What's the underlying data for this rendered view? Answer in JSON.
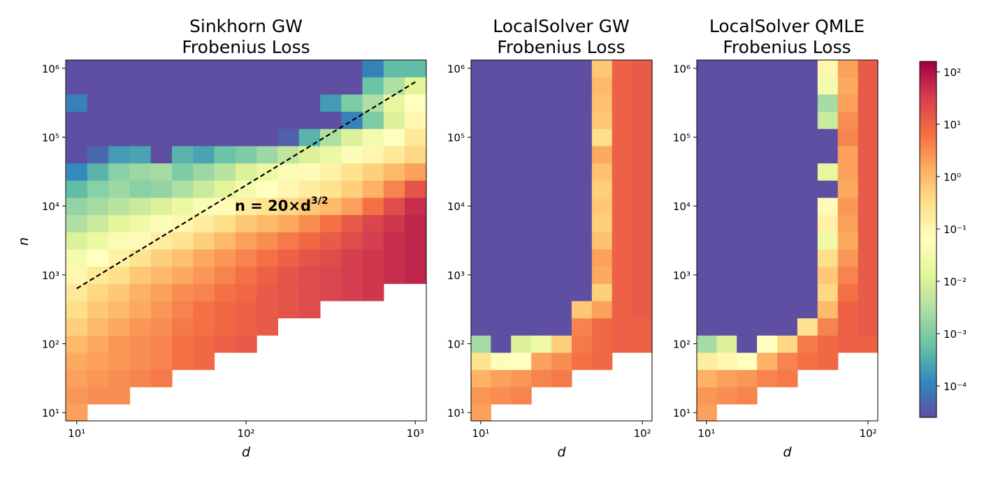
{
  "chart_data": [
    {
      "type": "heatmap",
      "title": [
        "Sinkhorn GW",
        "Frobenius Loss"
      ],
      "xlabel": "d",
      "ylabel": "n",
      "x_scale": "log",
      "y_scale": "log",
      "x_ticks": [
        {
          "value": 10,
          "label": "10¹"
        },
        {
          "value": 100,
          "label": "10²"
        },
        {
          "value": 1000,
          "label": "10³"
        }
      ],
      "y_ticks": [
        {
          "value": 10,
          "label": "10¹"
        },
        {
          "value": 100,
          "label": "10²"
        },
        {
          "value": 1000,
          "label": "10³"
        },
        {
          "value": 10000,
          "label": "10⁴"
        },
        {
          "value": 100000,
          "label": "10⁵"
        },
        {
          "value": 1000000,
          "label": "10⁶"
        }
      ],
      "x_log_range": [
        0.935,
        3.065
      ],
      "y_log_range": [
        0.88,
        6.12
      ],
      "x_log_start": 1.0,
      "x_log_step": 0.125,
      "x_count": 17,
      "y_log_start": 1.0,
      "y_log_step": 0.25,
      "y_count": 21,
      "cell_note": "log10 of loss, rows from n=10 upward, columns d from 10 upward; null = no data",
      "log10_values": [
        [
          0.3,
          null,
          null,
          null,
          null,
          null,
          null,
          null,
          null,
          null,
          null,
          null,
          null,
          null,
          null,
          null,
          null
        ],
        [
          0.4,
          0.5,
          0.5,
          null,
          null,
          null,
          null,
          null,
          null,
          null,
          null,
          null,
          null,
          null,
          null,
          null,
          null
        ],
        [
          0.3,
          0.4,
          0.5,
          0.6,
          0.7,
          null,
          null,
          null,
          null,
          null,
          null,
          null,
          null,
          null,
          null,
          null,
          null
        ],
        [
          0.2,
          0.3,
          0.4,
          0.5,
          0.6,
          0.8,
          0.9,
          null,
          null,
          null,
          null,
          null,
          null,
          null,
          null,
          null,
          null
        ],
        [
          0.0,
          0.2,
          0.4,
          0.5,
          0.6,
          0.8,
          0.9,
          1.0,
          1.1,
          null,
          null,
          null,
          null,
          null,
          null,
          null,
          null
        ],
        [
          -0.3,
          0.0,
          0.2,
          0.4,
          0.5,
          0.7,
          0.8,
          0.9,
          1.0,
          1.1,
          null,
          null,
          null,
          null,
          null,
          null,
          null
        ],
        [
          -0.5,
          -0.2,
          0.0,
          0.2,
          0.4,
          0.6,
          0.8,
          0.9,
          1.0,
          1.1,
          1.2,
          1.3,
          null,
          null,
          null,
          null,
          null
        ],
        [
          -0.7,
          -0.4,
          -0.2,
          0.1,
          0.3,
          0.5,
          0.6,
          0.8,
          0.9,
          1.1,
          1.2,
          1.3,
          1.4,
          1.5,
          1.6,
          null,
          null
        ],
        [
          -1.0,
          -0.7,
          -0.5,
          -0.2,
          0.0,
          0.2,
          0.4,
          0.6,
          0.8,
          1.0,
          1.2,
          1.3,
          1.4,
          1.5,
          1.6,
          1.7,
          1.8
        ],
        [
          -1.5,
          -1.2,
          -0.9,
          -0.6,
          -0.3,
          -0.1,
          0.2,
          0.4,
          0.6,
          0.8,
          1.0,
          1.2,
          1.3,
          1.5,
          1.6,
          1.7,
          1.8
        ],
        [
          -2.0,
          -1.7,
          -1.4,
          -1.1,
          -0.8,
          -0.6,
          -0.3,
          0.0,
          0.3,
          0.5,
          0.7,
          0.9,
          1.1,
          1.3,
          1.5,
          1.7,
          1.8
        ],
        [
          -2.5,
          -2.2,
          -1.9,
          -1.6,
          -1.3,
          -1.0,
          -0.8,
          -0.5,
          -0.2,
          0.0,
          0.2,
          0.5,
          0.8,
          1.1,
          1.4,
          1.6,
          1.8
        ],
        [
          -2.8,
          -2.6,
          -2.4,
          -2.2,
          -2.0,
          -1.7,
          -1.4,
          -1.1,
          -0.8,
          -0.6,
          -0.4,
          -0.2,
          0.0,
          0.3,
          0.8,
          1.3,
          1.7
        ],
        [
          -3.3,
          -2.9,
          -2.7,
          -2.9,
          -2.8,
          -2.5,
          -2.2,
          -1.9,
          -1.5,
          -1.2,
          -1.0,
          -0.8,
          -0.6,
          -0.3,
          0.1,
          0.6,
          1.2
        ],
        [
          -3.9,
          -3.4,
          -2.9,
          -2.7,
          -2.6,
          -3.0,
          -2.7,
          -2.4,
          -2.0,
          -1.7,
          -1.4,
          -1.1,
          -0.9,
          -0.6,
          -0.3,
          0.0,
          0.3
        ],
        [
          -5.0,
          -4.3,
          -3.7,
          -3.6,
          -5.0,
          -3.4,
          -3.6,
          -3.2,
          -3.0,
          -2.7,
          -2.3,
          -2.0,
          -1.7,
          -1.3,
          -1.0,
          -0.7,
          -0.4
        ],
        [
          -5.0,
          -5.0,
          -5.0,
          -5.0,
          -5.0,
          -5.0,
          -5.0,
          -5.0,
          -5.0,
          -5.0,
          -4.4,
          -3.4,
          -2.5,
          -2.0,
          -1.5,
          -1.2,
          -0.7
        ],
        [
          -5.0,
          -5.0,
          -5.0,
          -5.0,
          -5.0,
          -5.0,
          -5.0,
          -5.0,
          -5.0,
          -5.0,
          -5.0,
          -5.0,
          -5.0,
          -4.0,
          -3.0,
          -2.0,
          -1.0
        ],
        [
          -4.0,
          -5.0,
          -5.0,
          -5.0,
          -5.0,
          -5.0,
          -5.0,
          -5.0,
          -5.0,
          -5.0,
          -5.0,
          -5.0,
          -3.7,
          -3.0,
          -2.5,
          -1.8,
          -1.2
        ],
        [
          -5.0,
          -5.0,
          -5.0,
          -5.0,
          -5.0,
          -5.0,
          -5.0,
          -5.0,
          -5.0,
          -5.0,
          -5.0,
          -5.0,
          -5.0,
          -5.0,
          -3.2,
          -2.5,
          -1.9
        ],
        [
          -5.0,
          -5.0,
          -5.0,
          -5.0,
          -5.0,
          -5.0,
          -5.0,
          -5.0,
          -5.0,
          -5.0,
          -5.0,
          -5.0,
          -5.0,
          -5.0,
          -4.0,
          -3.3,
          -3.3
        ]
      ],
      "reference_line": {
        "label_prefix": "n = 20×d",
        "label_exponent": "3/2",
        "style": "dashed",
        "color": "#000000",
        "coefficient": 20,
        "exponent": 1.5,
        "d_from": 10,
        "d_to": 1000
      }
    },
    {
      "type": "heatmap",
      "title": [
        "LocalSolver GW",
        "Frobenius Loss"
      ],
      "xlabel": "d",
      "ylabel": "",
      "x_scale": "log",
      "y_scale": "log",
      "x_ticks": [
        {
          "value": 10,
          "label": "10¹"
        },
        {
          "value": 100,
          "label": "10²"
        }
      ],
      "y_ticks": [
        {
          "value": 10,
          "label": "10¹"
        },
        {
          "value": 100,
          "label": "10²"
        },
        {
          "value": 1000,
          "label": "10³"
        },
        {
          "value": 10000,
          "label": "10⁴"
        },
        {
          "value": 100000,
          "label": "10⁵"
        },
        {
          "value": 1000000,
          "label": "10⁶"
        }
      ],
      "x_log_range": [
        0.94,
        2.06
      ],
      "y_log_range": [
        0.88,
        6.12
      ],
      "x_log_start": 1.0,
      "x_log_step": 0.125,
      "x_count": 9,
      "y_log_start": 1.0,
      "y_log_step": 0.25,
      "y_count": 21,
      "log10_values": [
        [
          0.3,
          null,
          null,
          null,
          null,
          null,
          null,
          null,
          null
        ],
        [
          0.4,
          0.5,
          0.6,
          null,
          null,
          null,
          null,
          null,
          null
        ],
        [
          0.1,
          0.3,
          0.4,
          0.6,
          0.7,
          null,
          null,
          null,
          null
        ],
        [
          -0.6,
          -1.3,
          -1.2,
          0.3,
          0.5,
          0.8,
          0.9,
          null,
          null
        ],
        [
          -2.6,
          -5.0,
          -2.0,
          -1.6,
          -0.3,
          0.7,
          0.9,
          1.0,
          1.0
        ],
        [
          -5.0,
          -5.0,
          -5.0,
          -5.0,
          -5.0,
          0.6,
          0.9,
          1.0,
          1.0
        ],
        [
          -5.0,
          -5.0,
          -5.0,
          -5.0,
          -5.0,
          -0.2,
          0.3,
          1.0,
          1.1
        ],
        [
          -5.0,
          -5.0,
          -5.0,
          -5.0,
          -5.0,
          -5.0,
          -0.3,
          1.0,
          1.1
        ],
        [
          -5.0,
          -5.0,
          -5.0,
          -5.0,
          -5.0,
          -5.0,
          0.2,
          1.0,
          1.1
        ],
        [
          -5.0,
          -5.0,
          -5.0,
          -5.0,
          -5.0,
          -5.0,
          0.3,
          1.0,
          1.1
        ],
        [
          -5.0,
          -5.0,
          -5.0,
          -5.0,
          -5.0,
          -5.0,
          -0.1,
          1.0,
          1.1
        ],
        [
          -5.0,
          -5.0,
          -5.0,
          -5.0,
          -5.0,
          -5.0,
          -0.3,
          1.0,
          1.1
        ],
        [
          -5.0,
          -5.0,
          -5.0,
          -5.0,
          -5.0,
          -5.0,
          -0.2,
          1.0,
          1.1
        ],
        [
          -5.0,
          -5.0,
          -5.0,
          -5.0,
          -5.0,
          -5.0,
          -0.3,
          1.0,
          1.1
        ],
        [
          -5.0,
          -5.0,
          -5.0,
          -5.0,
          -5.0,
          -5.0,
          -0.1,
          1.0,
          1.1
        ],
        [
          -5.0,
          -5.0,
          -5.0,
          -5.0,
          -5.0,
          -5.0,
          0.2,
          1.0,
          1.1
        ],
        [
          -5.0,
          -5.0,
          -5.0,
          -5.0,
          -5.0,
          -5.0,
          -0.5,
          1.0,
          1.1
        ],
        [
          -5.0,
          -5.0,
          -5.0,
          -5.0,
          -5.0,
          -5.0,
          -0.2,
          1.0,
          1.1
        ],
        [
          -5.0,
          -5.0,
          -5.0,
          -5.0,
          -5.0,
          -5.0,
          -0.1,
          1.0,
          1.1
        ],
        [
          -5.0,
          -5.0,
          -5.0,
          -5.0,
          -5.0,
          -5.0,
          0.0,
          1.0,
          1.1
        ],
        [
          -5.0,
          -5.0,
          -5.0,
          -5.0,
          -5.0,
          -5.0,
          -0.2,
          1.0,
          1.1
        ]
      ]
    },
    {
      "type": "heatmap",
      "title": [
        "LocalSolver QMLE",
        "Frobenius Loss"
      ],
      "xlabel": "d",
      "ylabel": "",
      "x_scale": "log",
      "y_scale": "log",
      "x_ticks": [
        {
          "value": 10,
          "label": "10¹"
        },
        {
          "value": 100,
          "label": "10²"
        }
      ],
      "y_ticks": [
        {
          "value": 10,
          "label": "10¹"
        },
        {
          "value": 100,
          "label": "10²"
        },
        {
          "value": 1000,
          "label": "10³"
        },
        {
          "value": 10000,
          "label": "10⁴"
        },
        {
          "value": 100000,
          "label": "10⁵"
        },
        {
          "value": 1000000,
          "label": "10⁶"
        }
      ],
      "x_log_range": [
        0.94,
        2.06
      ],
      "y_log_range": [
        0.88,
        6.12
      ],
      "x_log_start": 1.0,
      "x_log_step": 0.125,
      "x_count": 9,
      "y_log_start": 1.0,
      "y_log_step": 0.25,
      "y_count": 21,
      "log10_values": [
        [
          0.3,
          null,
          null,
          null,
          null,
          null,
          null,
          null,
          null
        ],
        [
          0.4,
          0.5,
          0.6,
          null,
          null,
          null,
          null,
          null,
          null
        ],
        [
          0.1,
          0.3,
          0.4,
          0.6,
          0.7,
          null,
          null,
          null,
          null
        ],
        [
          -0.8,
          -1.0,
          -1.2,
          0.1,
          0.6,
          0.8,
          0.9,
          null,
          null
        ],
        [
          -2.6,
          -2.0,
          -5.0,
          -1.2,
          -0.4,
          0.7,
          0.9,
          1.0,
          1.0
        ],
        [
          -5.0,
          -5.0,
          -5.0,
          -5.0,
          -5.0,
          -0.6,
          0.6,
          1.0,
          1.1
        ],
        [
          -5.0,
          -5.0,
          -5.0,
          -5.0,
          -5.0,
          -5.0,
          0.0,
          1.0,
          1.1
        ],
        [
          -5.0,
          -5.0,
          -5.0,
          -5.0,
          -5.0,
          -5.0,
          -0.4,
          0.8,
          1.1
        ],
        [
          -5.0,
          -5.0,
          -5.0,
          -5.0,
          -5.0,
          -5.0,
          -0.2,
          0.6,
          1.1
        ],
        [
          -5.0,
          -5.0,
          -5.0,
          -5.0,
          -5.0,
          -5.0,
          -0.5,
          0.4,
          1.1
        ],
        [
          -5.0,
          -5.0,
          -5.0,
          -5.0,
          -5.0,
          -5.0,
          -1.6,
          0.2,
          1.1
        ],
        [
          -5.0,
          -5.0,
          -5.0,
          -5.0,
          -5.0,
          -5.0,
          -0.9,
          0.3,
          1.1
        ],
        [
          -5.0,
          -5.0,
          -5.0,
          -5.0,
          -5.0,
          -5.0,
          -1.1,
          0.4,
          1.1
        ],
        [
          -5.0,
          -5.0,
          -5.0,
          -5.0,
          -5.0,
          -5.0,
          -5.0,
          0.2,
          1.1
        ],
        [
          -5.0,
          -5.0,
          -5.0,
          -5.0,
          -5.0,
          -5.0,
          -1.8,
          0.3,
          1.1
        ],
        [
          -5.0,
          -5.0,
          -5.0,
          -5.0,
          -5.0,
          -5.0,
          -5.0,
          0.3,
          1.1
        ],
        [
          -5.0,
          -5.0,
          -5.0,
          -5.0,
          -5.0,
          -5.0,
          -5.0,
          0.6,
          1.1
        ],
        [
          -5.0,
          -5.0,
          -5.0,
          -5.0,
          -5.0,
          -5.0,
          -2.2,
          0.5,
          1.1
        ],
        [
          -5.0,
          -5.0,
          -5.0,
          -5.0,
          -5.0,
          -5.0,
          -2.6,
          0.3,
          1.1
        ],
        [
          -5.0,
          -5.0,
          -5.0,
          -5.0,
          -5.0,
          -5.0,
          -1.5,
          0.2,
          1.1
        ],
        [
          -5.0,
          -5.0,
          -5.0,
          -5.0,
          -5.0,
          -5.0,
          -1.0,
          0.3,
          1.1
        ]
      ]
    }
  ],
  "colorbar": {
    "type": "colorbar",
    "scale": "log",
    "log_range": [
      -4.6,
      2.2
    ],
    "ticks": [
      {
        "value": -4,
        "label": "10⁻⁴"
      },
      {
        "value": -3,
        "label": "10⁻³"
      },
      {
        "value": -2,
        "label": "10⁻²"
      },
      {
        "value": -1,
        "label": "10⁻¹"
      },
      {
        "value": 0,
        "label": "10⁰"
      },
      {
        "value": 1,
        "label": "10¹"
      },
      {
        "value": 2,
        "label": "10²"
      }
    ],
    "colormap": "Spectral_r",
    "colormap_stops": [
      "#5e4fa2",
      "#3288bd",
      "#66c2a5",
      "#abdda4",
      "#e6f598",
      "#ffffbf",
      "#fee08b",
      "#fdae61",
      "#f46d43",
      "#d53e4f",
      "#9e0142"
    ]
  }
}
